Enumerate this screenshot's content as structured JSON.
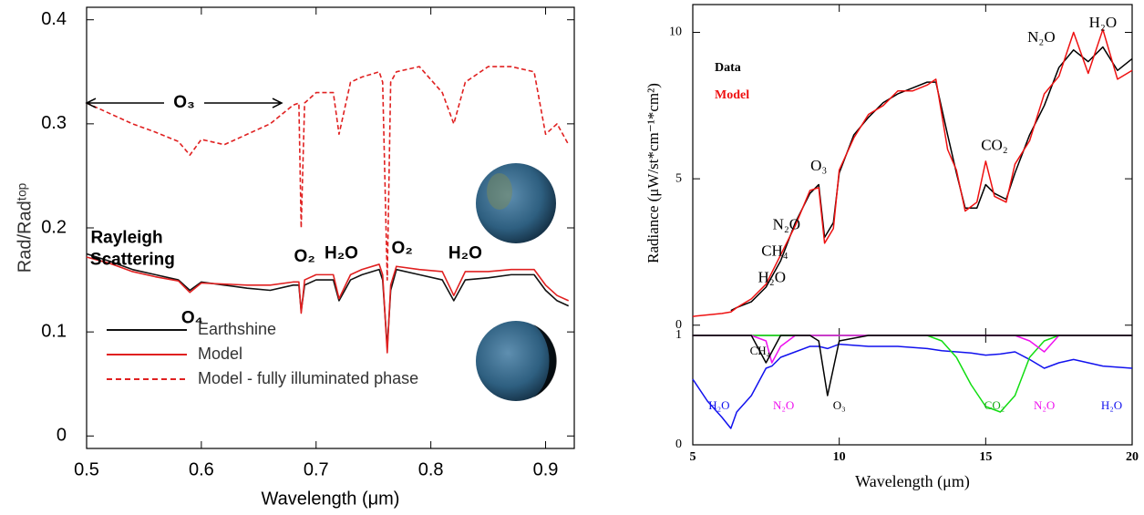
{
  "chart_data": [
    {
      "type": "line",
      "xlabel": "Wavelength (μm)",
      "ylabel": "Rad/Radᵗᵒᵖ",
      "xlim": [
        0.5,
        0.925
      ],
      "ylim": [
        -0.012,
        0.412
      ],
      "xticks": [
        0.5,
        0.6,
        0.7,
        0.8,
        0.9
      ],
      "yticks": [
        0,
        0.1,
        0.2,
        0.3,
        0.4
      ],
      "legend": "lower left",
      "legend_style": "lines",
      "x": [
        0.5,
        0.52,
        0.54,
        0.56,
        0.58,
        0.59,
        0.6,
        0.62,
        0.64,
        0.66,
        0.68,
        0.685,
        0.687,
        0.69,
        0.7,
        0.715,
        0.72,
        0.73,
        0.74,
        0.755,
        0.758,
        0.762,
        0.765,
        0.77,
        0.79,
        0.81,
        0.82,
        0.83,
        0.85,
        0.87,
        0.89,
        0.9,
        0.91,
        0.92
      ],
      "series": [
        {
          "name": "Earthshine",
          "color": "#111111",
          "dash": false,
          "values": [
            0.175,
            0.168,
            0.16,
            0.155,
            0.15,
            0.14,
            0.148,
            0.145,
            0.142,
            0.14,
            0.145,
            0.145,
            0.12,
            0.145,
            0.15,
            0.15,
            0.13,
            0.15,
            0.155,
            0.16,
            0.15,
            0.085,
            0.14,
            0.16,
            0.155,
            0.15,
            0.13,
            0.15,
            0.152,
            0.155,
            0.155,
            0.14,
            0.13,
            0.125
          ]
        },
        {
          "name": "Model",
          "color": "#e02020",
          "dash": false,
          "values": [
            0.172,
            0.166,
            0.158,
            0.153,
            0.149,
            0.138,
            0.147,
            0.146,
            0.145,
            0.145,
            0.148,
            0.148,
            0.118,
            0.15,
            0.155,
            0.155,
            0.132,
            0.155,
            0.16,
            0.165,
            0.155,
            0.08,
            0.145,
            0.163,
            0.16,
            0.158,
            0.135,
            0.158,
            0.158,
            0.16,
            0.16,
            0.145,
            0.135,
            0.13
          ]
        },
        {
          "name": "Model - fully illuminated phase",
          "color": "#e02020",
          "dash": true,
          "values": [
            0.32,
            0.31,
            0.3,
            0.292,
            0.283,
            0.27,
            0.285,
            0.28,
            0.29,
            0.3,
            0.318,
            0.32,
            0.2,
            0.32,
            0.33,
            0.33,
            0.29,
            0.34,
            0.345,
            0.35,
            0.34,
            0.15,
            0.34,
            0.35,
            0.355,
            0.33,
            0.3,
            0.34,
            0.355,
            0.355,
            0.35,
            0.29,
            0.3,
            0.28
          ]
        }
      ],
      "annotations": [
        {
          "text": "O₃",
          "x": 0.585,
          "y": 0.32,
          "span": [
            0.5,
            0.67
          ]
        },
        {
          "text": "Rayleigh",
          "x": 0.535,
          "y": 0.19
        },
        {
          "text": "Scattering",
          "x": 0.54,
          "y": 0.169
        },
        {
          "text": "O₂",
          "x": 0.69,
          "y": 0.172
        },
        {
          "text": "H₂O",
          "x": 0.722,
          "y": 0.175
        },
        {
          "text": "O₂",
          "x": 0.775,
          "y": 0.18
        },
        {
          "text": "H₂O",
          "x": 0.83,
          "y": 0.175
        },
        {
          "text": "O₄",
          "x": 0.592,
          "y": 0.113
        }
      ]
    },
    {
      "type": "line",
      "ylabel": "Radiance (μW/st*cm⁻¹*cm²)",
      "xlim": [
        5,
        20
      ],
      "ylim": [
        -0.35,
        10.95
      ],
      "xticks": [
        5,
        10,
        15,
        20
      ],
      "yticks": [
        0,
        5,
        10
      ],
      "legend": "upper left",
      "legend_style": "text",
      "x": [
        5,
        6,
        6.3,
        6.5,
        7,
        7.5,
        8,
        8.5,
        9,
        9.3,
        9.5,
        9.8,
        10,
        10.5,
        11,
        11.5,
        12,
        12.5,
        13,
        13.3,
        13.7,
        14,
        14.3,
        14.7,
        15,
        15.3,
        15.7,
        16,
        16.5,
        17,
        17.5,
        18,
        18.5,
        19,
        19.5,
        20
      ],
      "series": [
        {
          "name": "Data",
          "color": "#000000",
          "dash": false,
          "values": [
            null,
            null,
            0.5,
            0.6,
            0.8,
            1.3,
            2.2,
            3.5,
            4.5,
            4.8,
            3.0,
            3.5,
            5.2,
            6.5,
            7.1,
            7.6,
            7.9,
            8.1,
            8.3,
            8.3,
            6.5,
            5.2,
            4.0,
            4.0,
            4.8,
            4.5,
            4.3,
            5.2,
            6.5,
            7.5,
            8.8,
            9.4,
            9.0,
            9.5,
            8.7,
            9.1
          ]
        },
        {
          "name": "Model",
          "color": "#ee1111",
          "dash": false,
          "values": [
            0.3,
            0.4,
            0.45,
            0.6,
            0.9,
            1.4,
            2.4,
            3.4,
            4.6,
            4.7,
            2.8,
            3.3,
            5.3,
            6.4,
            7.2,
            7.5,
            8.0,
            8.0,
            8.2,
            8.4,
            6.0,
            5.3,
            3.9,
            4.2,
            5.6,
            4.4,
            4.2,
            5.5,
            6.3,
            7.9,
            8.5,
            10.0,
            8.6,
            10.1,
            8.4,
            8.7
          ]
        }
      ],
      "annotations": [
        {
          "text": "O₃",
          "x": 9.3,
          "y": 5.4
        },
        {
          "text": "N₂O",
          "x": 8.2,
          "y": 3.4
        },
        {
          "text": "CH₄",
          "x": 7.8,
          "y": 2.5
        },
        {
          "text": "H₂O",
          "x": 7.7,
          "y": 1.6
        },
        {
          "text": "CO₂",
          "x": 15.3,
          "y": 6.1
        },
        {
          "text": "N₂O",
          "x": 16.9,
          "y": 9.8
        },
        {
          "text": "H₂O",
          "x": 19.0,
          "y": 10.3
        }
      ]
    },
    {
      "type": "line",
      "xlabel": "Wavelength (μm)",
      "xlim": [
        5,
        20
      ],
      "ylim": [
        0,
        1.0
      ],
      "xticks": [
        5,
        10,
        15,
        20
      ],
      "yticks": [
        0,
        1
      ],
      "x": [
        5,
        5.5,
        6,
        6.3,
        6.5,
        7,
        7.5,
        7.7,
        8,
        8.5,
        9,
        9.3,
        9.6,
        10,
        11,
        12,
        13,
        13.5,
        14,
        14.5,
        15,
        15.5,
        16,
        16.5,
        17,
        17.5,
        18,
        19,
        20
      ],
      "series": [
        {
          "color": "#1111ee",
          "dash": false,
          "values": [
            0.6,
            0.4,
            0.25,
            0.15,
            0.3,
            0.45,
            0.7,
            0.72,
            0.8,
            0.85,
            0.9,
            0.9,
            0.88,
            0.92,
            0.9,
            0.9,
            0.88,
            0.86,
            0.85,
            0.84,
            0.82,
            0.83,
            0.85,
            0.78,
            0.7,
            0.75,
            0.78,
            0.72,
            0.7
          ]
        },
        {
          "color": "#11dd11",
          "dash": false,
          "values": [
            1,
            1,
            1,
            1,
            1,
            1,
            1,
            1,
            1,
            1,
            1,
            1,
            1,
            1,
            1,
            1,
            1,
            0.95,
            0.8,
            0.55,
            0.35,
            0.3,
            0.45,
            0.8,
            0.95,
            1,
            1,
            1,
            1
          ]
        },
        {
          "color": "#ee11ee",
          "dash": false,
          "values": [
            1,
            1,
            1,
            1,
            1,
            1,
            0.95,
            0.75,
            0.9,
            1,
            1,
            1,
            1,
            1,
            1,
            1,
            1,
            1,
            1,
            1,
            1,
            1,
            1,
            0.95,
            0.85,
            1,
            1,
            1,
            1
          ]
        },
        {
          "color": "#000000",
          "dash": false,
          "values": [
            1,
            1,
            1,
            1,
            1,
            1,
            0.75,
            0.85,
            1,
            1,
            1,
            0.95,
            0.45,
            0.95,
            1,
            1,
            1,
            1,
            1,
            1,
            1,
            1,
            1,
            1,
            1,
            1,
            1,
            1,
            1
          ]
        }
      ],
      "annotations": [
        {
          "text": "H₂O",
          "x": 5.9,
          "y": 0.35,
          "color": "#1111ee"
        },
        {
          "text": "N₂O",
          "x": 8.1,
          "y": 0.35,
          "color": "#ee11ee"
        },
        {
          "text": "O₃",
          "x": 10.0,
          "y": 0.35,
          "color": "#000000"
        },
        {
          "text": "CH₄",
          "x": 7.3,
          "y": 0.85,
          "color": "#000000"
        },
        {
          "text": "CO₂",
          "x": 15.3,
          "y": 0.35,
          "color": "#11aa11"
        },
        {
          "text": "N₂O",
          "x": 17.0,
          "y": 0.35,
          "color": "#ee11ee"
        },
        {
          "text": "H₂O",
          "x": 19.3,
          "y": 0.35,
          "color": "#1111ee"
        }
      ]
    }
  ]
}
